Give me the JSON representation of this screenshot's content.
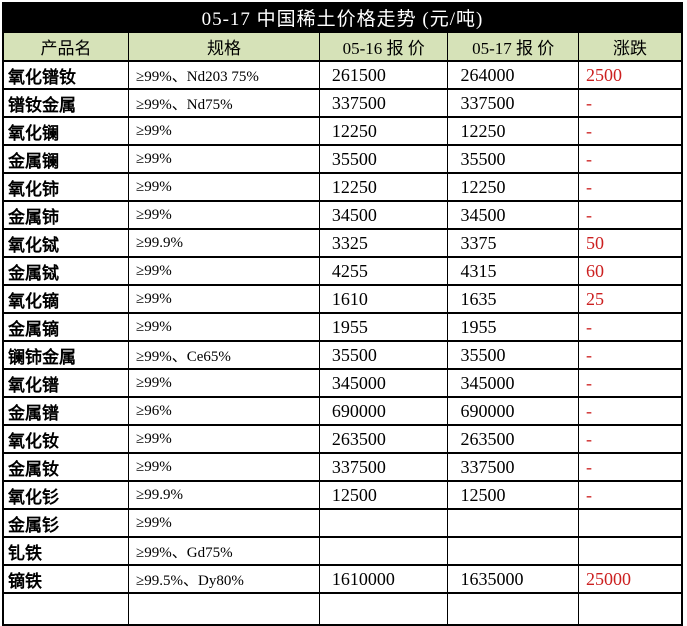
{
  "title": "05-17 中国稀土价格走势 (元/吨)",
  "table": {
    "headers": [
      "产品名",
      "规格",
      "05-16 报 价",
      "05-17 报 价",
      "涨跌"
    ],
    "rows": [
      {
        "product": "氧化镨钕",
        "spec": "≥99%、Nd203 75%",
        "price_0516": "261500",
        "price_0517": "264000",
        "change": "2500"
      },
      {
        "product": "镨钕金属",
        "spec": "≥99%、Nd75%",
        "price_0516": "337500",
        "price_0517": "337500",
        "change": "-"
      },
      {
        "product": "氧化镧",
        "spec": "≥99%",
        "price_0516": "12250",
        "price_0517": "12250",
        "change": "-"
      },
      {
        "product": "金属镧",
        "spec": "≥99%",
        "price_0516": "35500",
        "price_0517": "35500",
        "change": "-"
      },
      {
        "product": "氧化铈",
        "spec": "≥99%",
        "price_0516": "12250",
        "price_0517": "12250",
        "change": "-"
      },
      {
        "product": "金属铈",
        "spec": "≥99%",
        "price_0516": "34500",
        "price_0517": "34500",
        "change": "-"
      },
      {
        "product": "氧化铽",
        "spec": "≥99.9%",
        "price_0516": "3325",
        "price_0517": "3375",
        "change": "50"
      },
      {
        "product": "金属铽",
        "spec": "≥99%",
        "price_0516": "4255",
        "price_0517": "4315",
        "change": "60"
      },
      {
        "product": "氧化镝",
        "spec": "≥99%",
        "price_0516": "1610",
        "price_0517": "1635",
        "change": "25"
      },
      {
        "product": "金属镝",
        "spec": "≥99%",
        "price_0516": "1955",
        "price_0517": "1955",
        "change": "-"
      },
      {
        "product": "镧铈金属",
        "spec": "≥99%、Ce65%",
        "price_0516": "35500",
        "price_0517": "35500",
        "change": "-"
      },
      {
        "product": "氧化镨",
        "spec": "≥99%",
        "price_0516": "345000",
        "price_0517": "345000",
        "change": "-"
      },
      {
        "product": "金属镨",
        "spec": "≥96%",
        "price_0516": "690000",
        "price_0517": "690000",
        "change": "-"
      },
      {
        "product": "氧化钕",
        "spec": "≥99%",
        "price_0516": "263500",
        "price_0517": "263500",
        "change": "-"
      },
      {
        "product": "金属钕",
        "spec": "≥99%",
        "price_0516": "337500",
        "price_0517": "337500",
        "change": "-"
      },
      {
        "product": "氧化钐",
        "spec": "≥99.9%",
        "price_0516": "12500",
        "price_0517": "12500",
        "change": "-"
      },
      {
        "product": "金属钐",
        "spec": "≥99%",
        "price_0516": "",
        "price_0517": "",
        "change": ""
      },
      {
        "product": "钆铁",
        "spec": "≥99%、Gd75%",
        "price_0516": "",
        "price_0517": "",
        "change": ""
      },
      {
        "product": "镝铁",
        "spec": "≥99.5%、Dy80%",
        "price_0516": "1610000",
        "price_0517": "1635000",
        "change": "25000"
      }
    ]
  },
  "colors": {
    "title_bg": "#000000",
    "title_text": "#ffffff",
    "header_bg": "#d6e2b8",
    "change_red": "#cc2020",
    "border": "#000000"
  }
}
